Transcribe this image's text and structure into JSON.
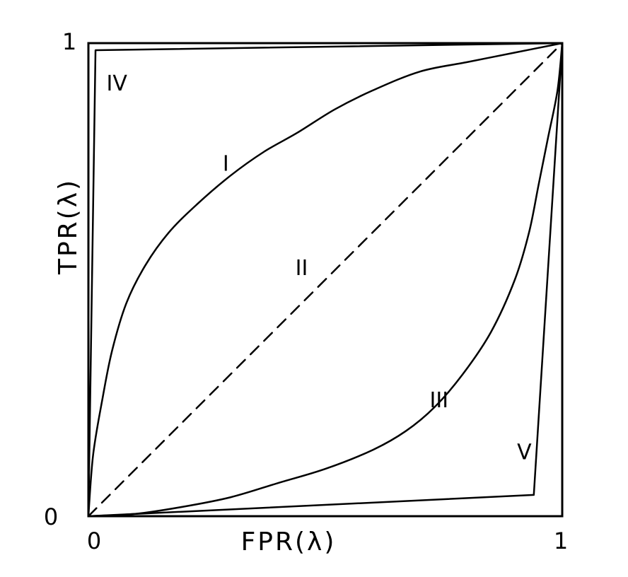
{
  "chart_data": {
    "type": "line",
    "title": "",
    "xlabel": "FPR(λ)",
    "ylabel": "TPR(λ)",
    "xlim": [
      0,
      1
    ],
    "ylim": [
      0,
      1
    ],
    "x_ticks": [
      "0",
      "1"
    ],
    "y_ticks": [
      "0",
      "1"
    ],
    "grid": false,
    "legend": "none",
    "series": [
      {
        "name": "I",
        "style": "solid",
        "label_at": [
          0.29,
          0.73
        ],
        "points": [
          [
            0,
            0
          ],
          [
            0.01,
            0.13
          ],
          [
            0.03,
            0.25
          ],
          [
            0.05,
            0.35
          ],
          [
            0.08,
            0.45
          ],
          [
            0.12,
            0.53
          ],
          [
            0.17,
            0.6
          ],
          [
            0.23,
            0.66
          ],
          [
            0.3,
            0.72
          ],
          [
            0.37,
            0.77
          ],
          [
            0.44,
            0.81
          ],
          [
            0.52,
            0.86
          ],
          [
            0.6,
            0.9
          ],
          [
            0.7,
            0.94
          ],
          [
            0.8,
            0.96
          ],
          [
            0.9,
            0.98
          ],
          [
            1,
            1
          ]
        ]
      },
      {
        "name": "II",
        "style": "dashed",
        "label_at": [
          0.45,
          0.51
        ],
        "points": [
          [
            0,
            0
          ],
          [
            1,
            1
          ]
        ]
      },
      {
        "name": "III",
        "style": "solid",
        "label_at": [
          0.74,
          0.23
        ],
        "points": [
          [
            0,
            0
          ],
          [
            0.1,
            0.005
          ],
          [
            0.2,
            0.02
          ],
          [
            0.3,
            0.04
          ],
          [
            0.4,
            0.07
          ],
          [
            0.5,
            0.1
          ],
          [
            0.6,
            0.14
          ],
          [
            0.67,
            0.18
          ],
          [
            0.73,
            0.23
          ],
          [
            0.79,
            0.3
          ],
          [
            0.85,
            0.39
          ],
          [
            0.9,
            0.5
          ],
          [
            0.93,
            0.6
          ],
          [
            0.95,
            0.7
          ],
          [
            0.97,
            0.8
          ],
          [
            0.99,
            0.9
          ],
          [
            1,
            1
          ]
        ]
      },
      {
        "name": "IV",
        "style": "solid",
        "label_at": [
          0.06,
          0.9
        ],
        "points": [
          [
            0,
            0
          ],
          [
            0.015,
            0.985
          ],
          [
            1,
            1
          ]
        ]
      },
      {
        "name": "V",
        "style": "solid",
        "label_at": [
          0.92,
          0.12
        ],
        "points": [
          [
            0,
            0
          ],
          [
            0.94,
            0.045
          ],
          [
            1,
            1
          ]
        ]
      }
    ]
  }
}
